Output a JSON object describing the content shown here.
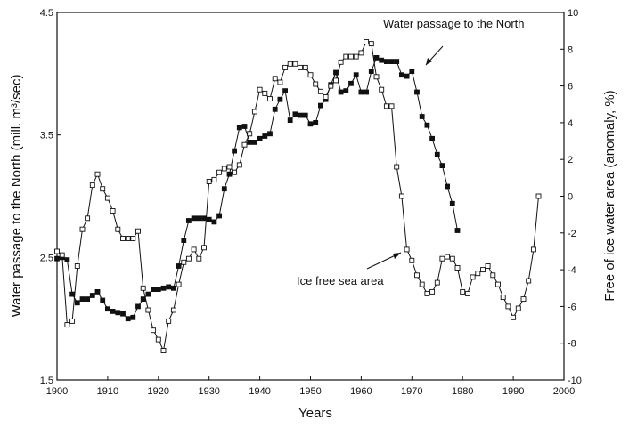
{
  "chart_data": {
    "type": "line",
    "xlabel": "Years",
    "ylabel_left": "Water passage to the North (mill. m³/sec)",
    "ylabel_right": "Free of ice water area (anomaly, %)",
    "xlim": [
      1900,
      2000
    ],
    "ylim_left": [
      1.5,
      4.5
    ],
    "ylim_right": [
      -10,
      10
    ],
    "x_ticks": [
      "1900",
      "1910",
      "1920",
      "1930",
      "1940",
      "1950",
      "1960",
      "1970",
      "1980",
      "1990",
      "2000"
    ],
    "y_left_ticks": [
      "1.5",
      "2.5",
      "3.5",
      "4.5"
    ],
    "y_right_ticks": [
      "-10",
      "-8",
      "-6",
      "-4",
      "-2",
      "0",
      "2",
      "4",
      "6",
      "8",
      "10"
    ],
    "grid": false,
    "series": [
      {
        "name": "Water passage to the North",
        "axis": "left",
        "marker": "filled-square",
        "x": [
          1900,
          1901,
          1902,
          1903,
          1904,
          1905,
          1906,
          1907,
          1908,
          1909,
          1910,
          1911,
          1912,
          1913,
          1914,
          1915,
          1916,
          1917,
          1918,
          1919,
          1920,
          1921,
          1922,
          1923,
          1924,
          1925,
          1926,
          1927,
          1928,
          1929,
          1930,
          1931,
          1932,
          1933,
          1934,
          1935,
          1936,
          1937,
          1938,
          1939,
          1940,
          1941,
          1942,
          1943,
          1944,
          1945,
          1946,
          1947,
          1948,
          1949,
          1950,
          1951,
          1952,
          1953,
          1954,
          1955,
          1956,
          1957,
          1958,
          1959,
          1960,
          1961,
          1962,
          1963,
          1964,
          1965,
          1966,
          1967,
          1968,
          1969,
          1970,
          1971,
          1972,
          1973,
          1974,
          1975,
          1976,
          1977,
          1978,
          1979
        ],
        "values": [
          2.49,
          2.5,
          2.48,
          2.2,
          2.13,
          2.16,
          2.16,
          2.19,
          2.22,
          2.15,
          2.08,
          2.06,
          2.05,
          2.04,
          2.0,
          2.01,
          2.1,
          2.16,
          2.2,
          2.24,
          2.24,
          2.25,
          2.26,
          2.25,
          2.43,
          2.64,
          2.8,
          2.82,
          2.82,
          2.82,
          2.81,
          2.79,
          2.84,
          3.06,
          3.18,
          3.37,
          3.56,
          3.57,
          3.44,
          3.44,
          3.47,
          3.49,
          3.51,
          3.71,
          3.79,
          3.86,
          3.62,
          3.67,
          3.66,
          3.66,
          3.59,
          3.6,
          3.74,
          3.79,
          3.91,
          4.01,
          3.85,
          3.86,
          3.92,
          3.99,
          3.85,
          3.85,
          4.02,
          4.13,
          4.11,
          4.1,
          4.1,
          4.1,
          3.99,
          3.98,
          4.02,
          3.85,
          3.65,
          3.58,
          3.47,
          3.34,
          3.25,
          3.08,
          2.94,
          2.72
        ]
      },
      {
        "name": "Ice free sea area",
        "axis": "right",
        "marker": "open-square",
        "x": [
          1900,
          1901,
          1902,
          1903,
          1904,
          1905,
          1906,
          1907,
          1908,
          1909,
          1910,
          1911,
          1912,
          1913,
          1914,
          1915,
          1916,
          1917,
          1918,
          1919,
          1920,
          1921,
          1922,
          1923,
          1924,
          1925,
          1926,
          1927,
          1928,
          1929,
          1930,
          1931,
          1932,
          1933,
          1934,
          1935,
          1936,
          1937,
          1938,
          1939,
          1940,
          1941,
          1942,
          1943,
          1944,
          1945,
          1946,
          1947,
          1948,
          1949,
          1950,
          1951,
          1952,
          1953,
          1954,
          1955,
          1956,
          1957,
          1958,
          1959,
          1960,
          1961,
          1962,
          1963,
          1964,
          1965,
          1966,
          1967,
          1968,
          1969,
          1970,
          1971,
          1972,
          1973,
          1974,
          1975,
          1976,
          1977,
          1978,
          1979,
          1980,
          1981,
          1982,
          1983,
          1984,
          1985,
          1986,
          1987,
          1988,
          1989,
          1990,
          1991,
          1992,
          1993,
          1994,
          1995
        ],
        "values": [
          -3.0,
          -3.2,
          -7.0,
          -6.8,
          -3.8,
          -1.8,
          -1.2,
          0.6,
          1.2,
          0.4,
          -0.1,
          -0.8,
          -1.8,
          -2.3,
          -2.3,
          -2.3,
          -1.9,
          -5.0,
          -6.2,
          -7.3,
          -7.8,
          -8.4,
          -6.8,
          -6.2,
          -4.8,
          -3.6,
          -3.4,
          -2.9,
          -3.4,
          -2.8,
          0.8,
          0.9,
          1.3,
          1.5,
          1.6,
          1.3,
          1.7,
          2.8,
          3.4,
          4.6,
          5.8,
          5.6,
          5.3,
          6.4,
          6.2,
          7.0,
          7.2,
          7.2,
          7.0,
          7.0,
          6.6,
          6.1,
          5.7,
          5.4,
          6.0,
          6.3,
          7.3,
          7.6,
          7.6,
          7.6,
          7.8,
          8.4,
          8.3,
          6.5,
          5.8,
          4.9,
          4.9,
          1.6,
          0.0,
          -2.9,
          -3.5,
          -4.3,
          -4.8,
          -5.3,
          -5.2,
          -4.7,
          -3.4,
          -3.3,
          -3.4,
          -3.9,
          -5.2,
          -5.3,
          -4.4,
          -4.2,
          -4.0,
          -3.8,
          -4.3,
          -4.8,
          -5.5,
          -6.0,
          -6.6,
          -6.1,
          -5.6,
          -4.6,
          -2.9,
          0.0
        ]
      }
    ],
    "annotations": [
      {
        "text": "Water passage to the North",
        "points_to": "Water passage to the North"
      },
      {
        "text": "Ice free sea area",
        "points_to": "Ice free sea area"
      }
    ]
  }
}
